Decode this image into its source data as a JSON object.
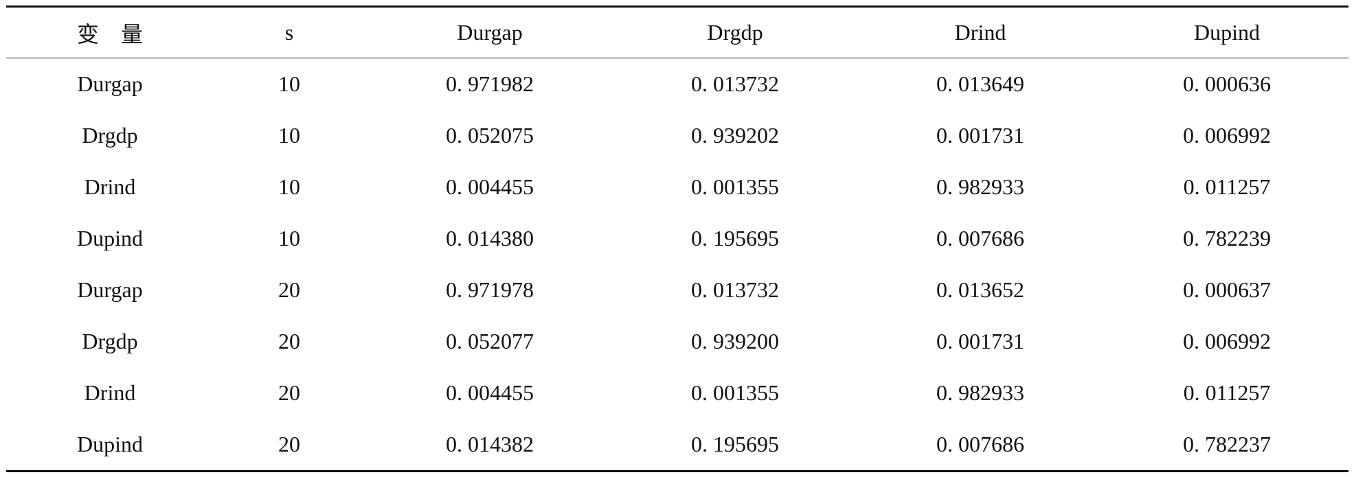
{
  "table": {
    "header": [
      "变　量",
      "s",
      "Durgap",
      "Drgdp",
      "Drind",
      "Dupind"
    ],
    "rows": [
      [
        "Durgap",
        "10",
        "0. 971982",
        "0. 013732",
        "0. 013649",
        "0. 000636"
      ],
      [
        "Drgdp",
        "10",
        "0. 052075",
        "0. 939202",
        "0. 001731",
        "0. 006992"
      ],
      [
        "Drind",
        "10",
        "0. 004455",
        "0. 001355",
        "0. 982933",
        "0. 011257"
      ],
      [
        "Dupind",
        "10",
        "0. 014380",
        "0. 195695",
        "0. 007686",
        "0. 782239"
      ],
      [
        "Durgap",
        "20",
        "0. 971978",
        "0. 013732",
        "0. 013652",
        "0. 000637"
      ],
      [
        "Drgdp",
        "20",
        "0. 052077",
        "0. 939200",
        "0. 001731",
        "0. 006992"
      ],
      [
        "Drind",
        "20",
        "0. 004455",
        "0. 001355",
        "0. 982933",
        "0. 011257"
      ],
      [
        "Dupind",
        "20",
        "0. 014382",
        "0. 195695",
        "0. 007686",
        "0. 782237"
      ]
    ]
  }
}
